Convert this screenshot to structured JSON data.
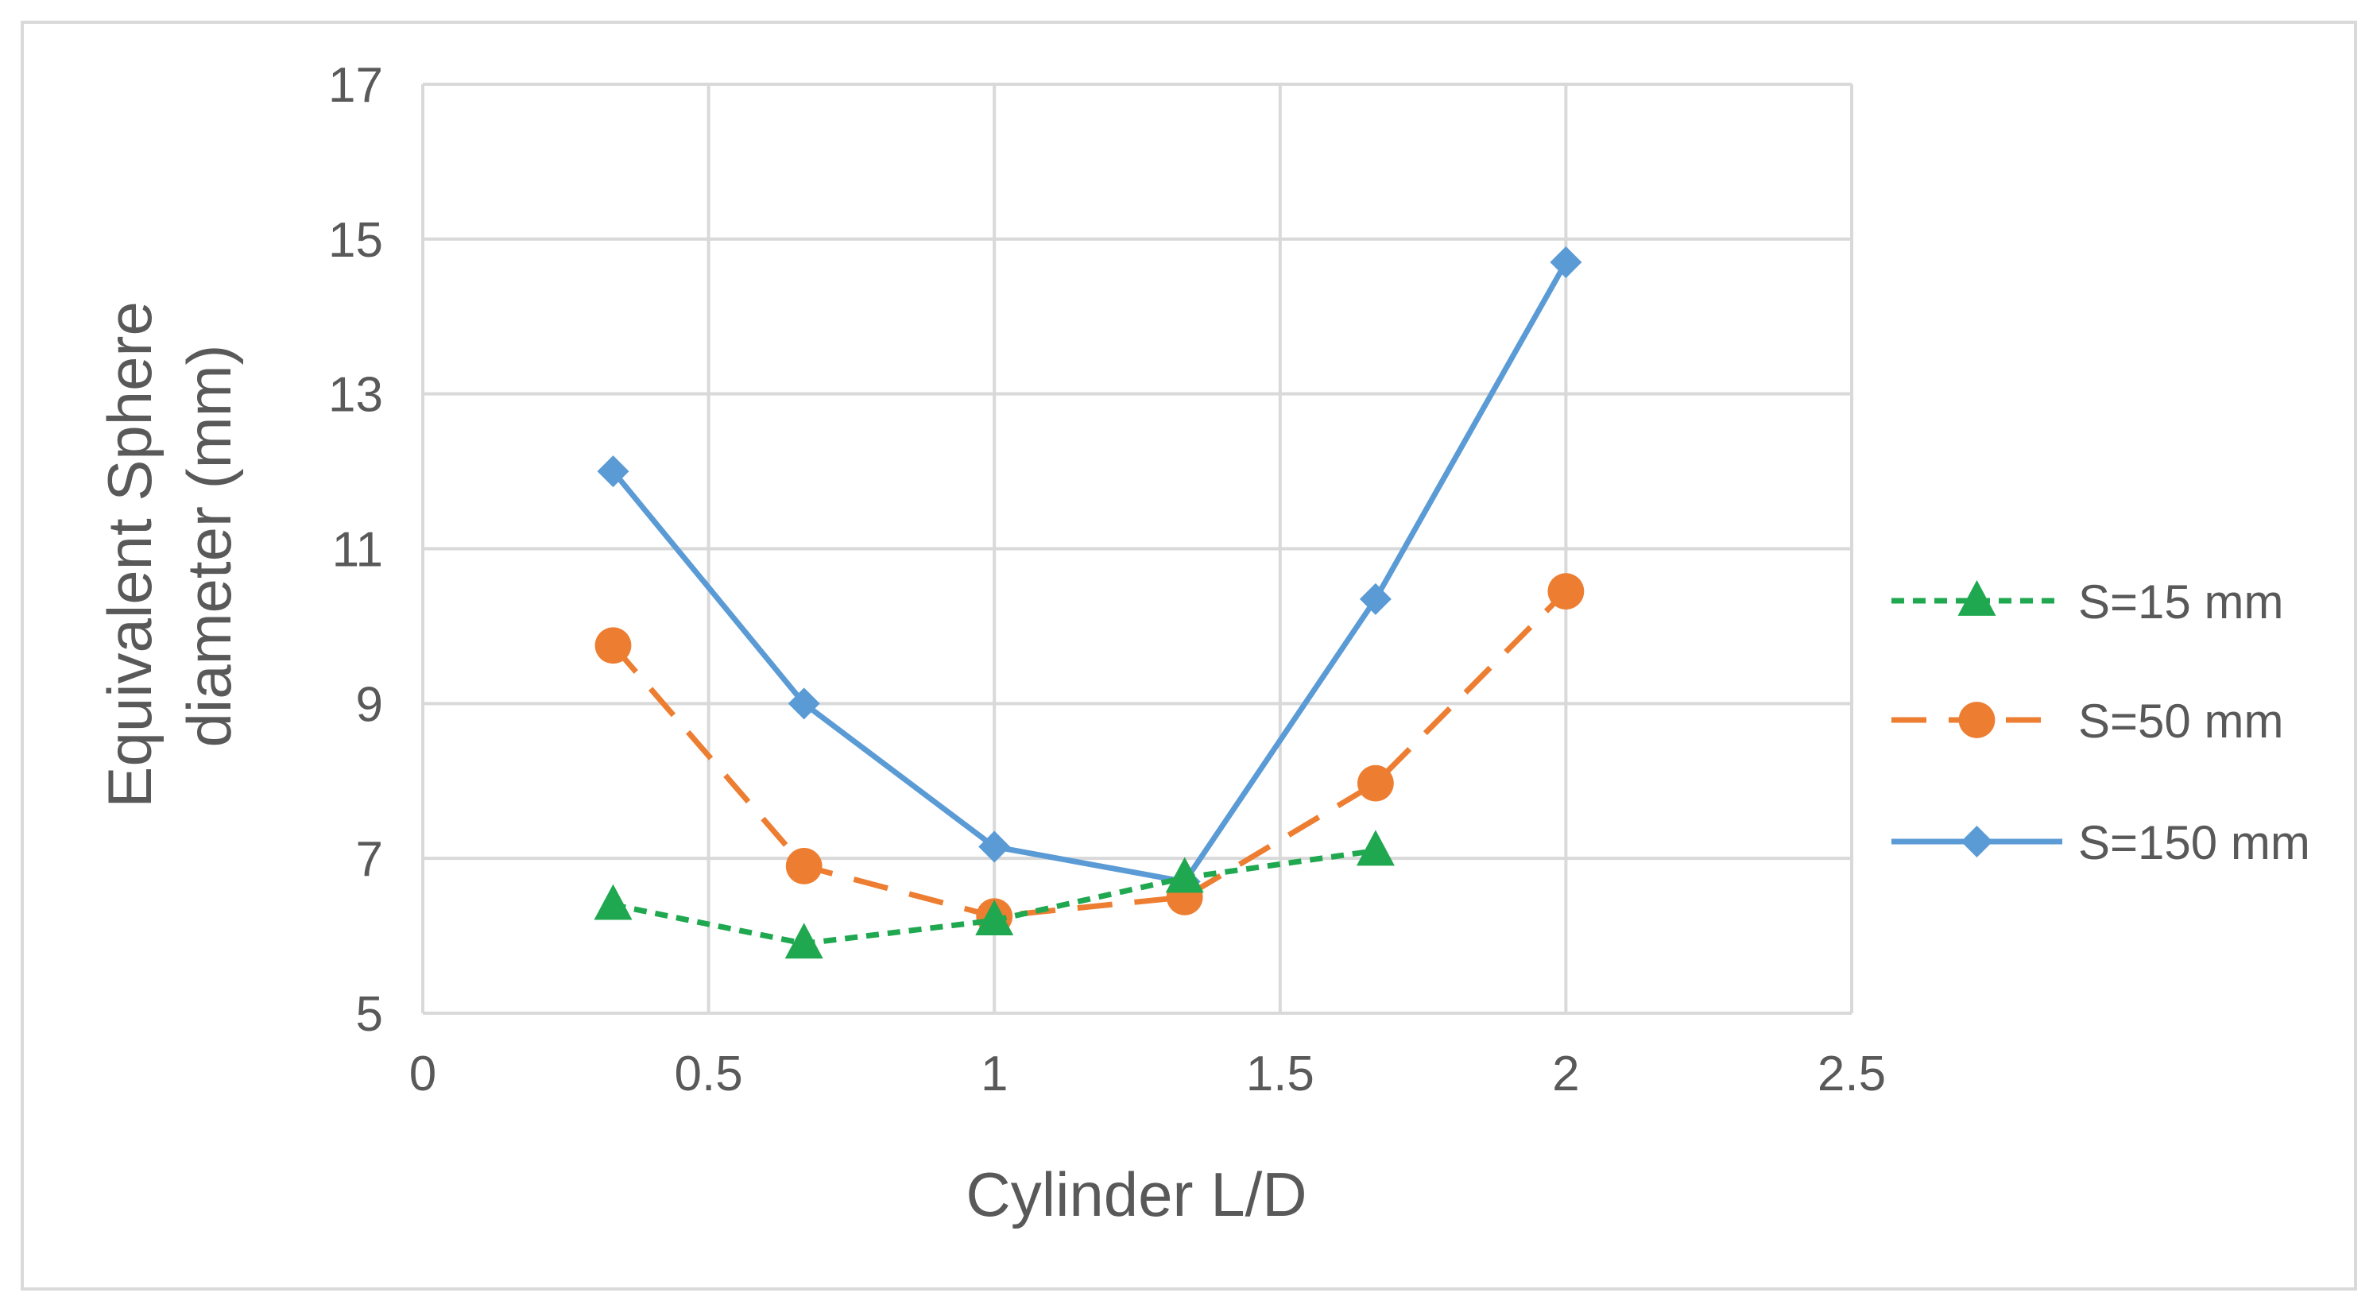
{
  "chart_data": {
    "type": "line",
    "title": "",
    "xlabel": "Cylinder L/D",
    "ylabel_lines": [
      "Equivalent Sphere",
      "diameter (mm)"
    ],
    "xlim": [
      0,
      2.5
    ],
    "ylim": [
      5,
      17
    ],
    "xticks": [
      0,
      0.5,
      1,
      1.5,
      2,
      2.5
    ],
    "xtick_labels": [
      "0",
      "0.5",
      "1",
      "1.5",
      "2",
      "2.5"
    ],
    "yticks": [
      5,
      7,
      9,
      11,
      13,
      15,
      17
    ],
    "ytick_labels": [
      "5",
      "7",
      "9",
      "11",
      "13",
      "15",
      "17"
    ],
    "grid": true,
    "legend_position": "right",
    "series": [
      {
        "name": "S=15 mm",
        "color": "#1fa84f",
        "marker": "triangle",
        "line_style": "dotted",
        "x": [
          0.333,
          0.667,
          1.0,
          1.333,
          1.667
        ],
        "y": [
          6.4,
          5.9,
          6.2,
          6.75,
          7.1
        ]
      },
      {
        "name": "S=50 mm",
        "color": "#ed7d31",
        "marker": "circle",
        "line_style": "dashed",
        "x": [
          0.333,
          0.667,
          1.0,
          1.333,
          1.667,
          2.0
        ],
        "y": [
          9.75,
          6.9,
          6.25,
          6.5,
          7.97,
          10.45
        ]
      },
      {
        "name": "S=150 mm",
        "color": "#5b9bd5",
        "marker": "diamond",
        "line_style": "solid",
        "x": [
          0.333,
          0.667,
          1.0,
          1.333,
          1.667,
          2.0
        ],
        "y": [
          12.0,
          9.0,
          7.15,
          6.7,
          10.35,
          14.7
        ]
      }
    ]
  }
}
